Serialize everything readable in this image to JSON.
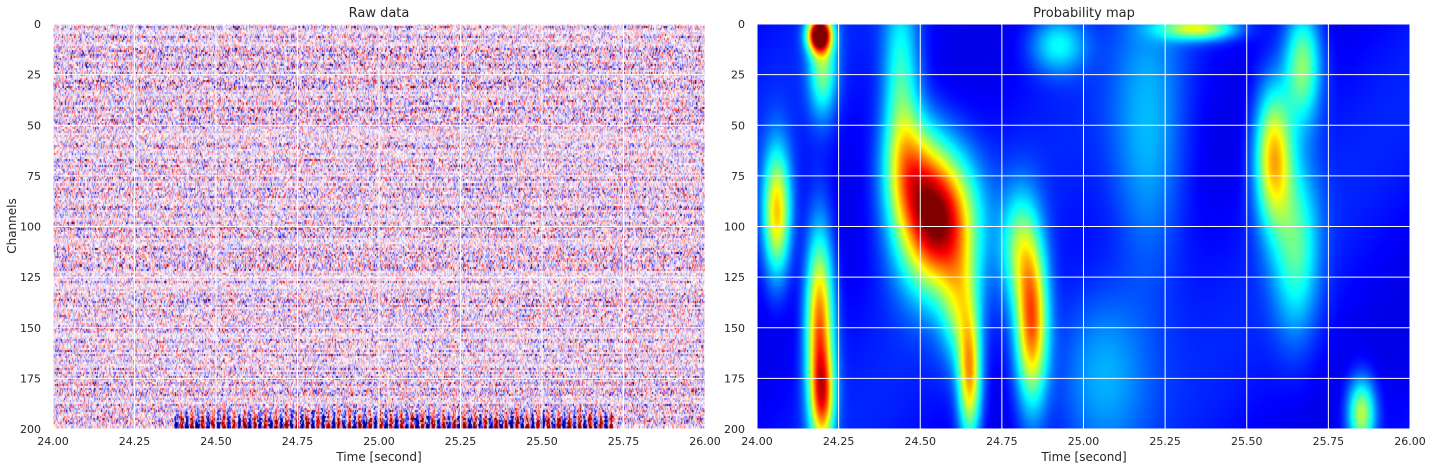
{
  "chart_data": [
    {
      "type": "heatmap",
      "title": "Raw data",
      "xlabel": "Time [second]",
      "ylabel": "Channels",
      "xlim": [
        24.0,
        26.0
      ],
      "ylim": [
        200,
        0
      ],
      "xticks": [
        24.0,
        24.25,
        24.5,
        24.75,
        25.0,
        25.25,
        25.5,
        25.75,
        26.0
      ],
      "xtick_labels": [
        "24.00",
        "24.25",
        "24.50",
        "24.75",
        "25.00",
        "25.25",
        "25.50",
        "25.75",
        "26.00"
      ],
      "yticks": [
        0,
        25,
        50,
        75,
        100,
        125,
        150,
        175,
        200
      ],
      "ytick_labels": [
        "0",
        "25",
        "50",
        "75",
        "100",
        "125",
        "150",
        "175",
        "200"
      ],
      "colormap": "seismic",
      "grid": true,
      "colors": {
        "negative": "#0000ff",
        "zero": "#ffffff",
        "positive": "#ff0000"
      }
    },
    {
      "type": "heatmap",
      "title": "Probability map",
      "xlabel": "Time [second]",
      "ylabel": "",
      "xlim": [
        24.0,
        26.0
      ],
      "ylim": [
        200,
        0
      ],
      "xticks": [
        24.0,
        24.25,
        24.5,
        24.75,
        25.0,
        25.25,
        25.5,
        25.75,
        26.0
      ],
      "xtick_labels": [
        "24.00",
        "24.25",
        "24.50",
        "24.75",
        "25.00",
        "25.25",
        "25.50",
        "25.75",
        "26.00"
      ],
      "yticks": [
        0,
        25,
        50,
        75,
        100,
        125,
        150,
        175,
        200
      ],
      "ytick_labels": [
        "0",
        "25",
        "50",
        "75",
        "100",
        "125",
        "150",
        "175",
        "200"
      ],
      "colormap": "jet",
      "grid": true,
      "blobs": [
        {
          "t": 24.19,
          "ch": 5,
          "st": 0.025,
          "sc": 6,
          "v": 0.95
        },
        {
          "t": 24.2,
          "ch": 22,
          "st": 0.03,
          "sc": 16,
          "v": 0.35
        },
        {
          "t": 24.06,
          "ch": 93,
          "st": 0.03,
          "sc": 22,
          "v": 0.55
        },
        {
          "t": 24.19,
          "ch": 148,
          "st": 0.03,
          "sc": 32,
          "v": 0.65
        },
        {
          "t": 24.2,
          "ch": 185,
          "st": 0.025,
          "sc": 16,
          "v": 0.45
        },
        {
          "t": 24.55,
          "ch": 97,
          "st": 0.08,
          "sc": 24,
          "v": 0.85
        },
        {
          "t": 24.47,
          "ch": 70,
          "st": 0.06,
          "sc": 20,
          "v": 0.35
        },
        {
          "t": 24.44,
          "ch": 30,
          "st": 0.04,
          "sc": 35,
          "v": 0.3
        },
        {
          "t": 24.84,
          "ch": 148,
          "st": 0.035,
          "sc": 28,
          "v": 0.65
        },
        {
          "t": 24.8,
          "ch": 110,
          "st": 0.04,
          "sc": 20,
          "v": 0.3
        },
        {
          "t": 24.65,
          "ch": 175,
          "st": 0.025,
          "sc": 22,
          "v": 0.55
        },
        {
          "t": 24.62,
          "ch": 140,
          "st": 0.04,
          "sc": 20,
          "v": 0.3
        },
        {
          "t": 25.35,
          "ch": 2,
          "st": 0.08,
          "sc": 4,
          "v": 0.45
        },
        {
          "t": 24.92,
          "ch": 10,
          "st": 0.06,
          "sc": 10,
          "v": 0.25
        },
        {
          "t": 25.58,
          "ch": 65,
          "st": 0.04,
          "sc": 24,
          "v": 0.55
        },
        {
          "t": 25.67,
          "ch": 20,
          "st": 0.04,
          "sc": 20,
          "v": 0.4
        },
        {
          "t": 25.65,
          "ch": 110,
          "st": 0.05,
          "sc": 30,
          "v": 0.3
        },
        {
          "t": 25.85,
          "ch": 192,
          "st": 0.03,
          "sc": 12,
          "v": 0.45
        },
        {
          "t": 25.2,
          "ch": 60,
          "st": 0.08,
          "sc": 50,
          "v": 0.18
        },
        {
          "t": 25.05,
          "ch": 170,
          "st": 0.1,
          "sc": 30,
          "v": 0.18
        }
      ],
      "background_level": 0.13
    }
  ]
}
